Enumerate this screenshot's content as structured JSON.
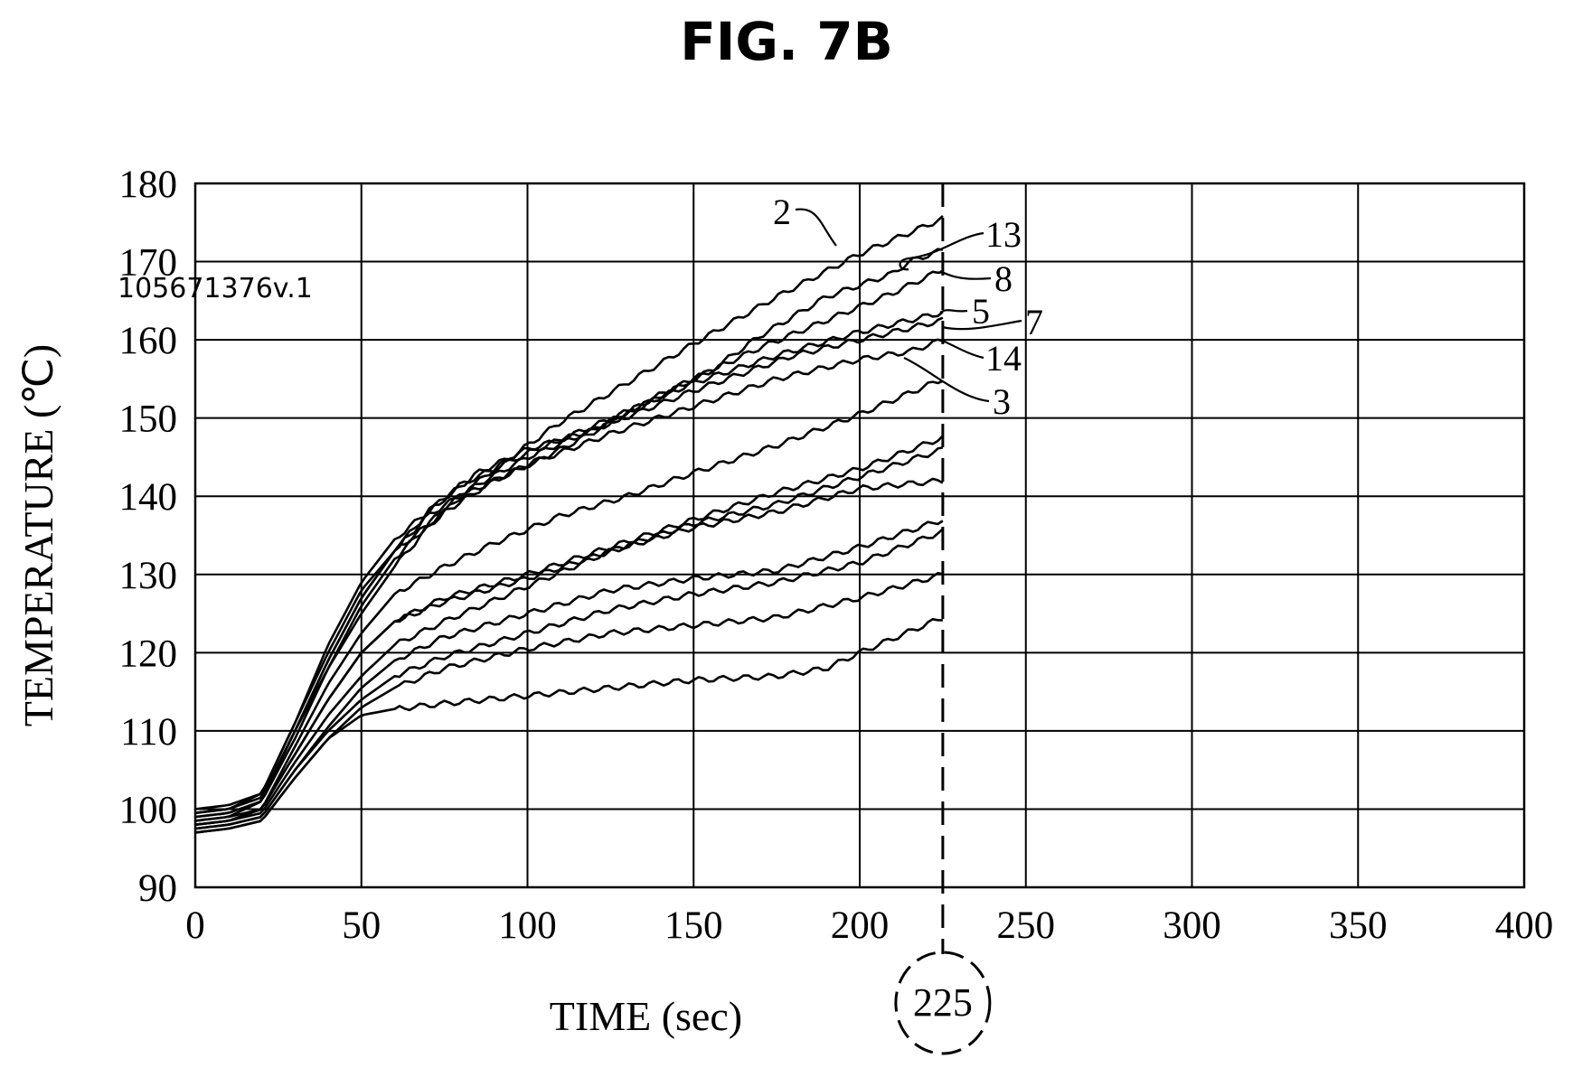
{
  "figure": {
    "title": "FIG. 7B",
    "watermark": "105671376v.1"
  },
  "chart_data": {
    "type": "line",
    "title": "FIG. 7B",
    "xlabel": "TIME (sec)",
    "ylabel": "TEMPERATURE (℃)",
    "xlim": [
      0,
      400
    ],
    "ylim": [
      90,
      180
    ],
    "xticks": [
      0,
      50,
      100,
      150,
      200,
      250,
      300,
      350,
      400
    ],
    "yticks": [
      90,
      100,
      110,
      120,
      130,
      140,
      150,
      160,
      170,
      180
    ],
    "grid": true,
    "marker_line": {
      "x": 225,
      "label": "225",
      "style": "dashed"
    },
    "curve_labels": [
      "2",
      "13",
      "8",
      "5",
      "7",
      "14",
      "3"
    ],
    "series": [
      {
        "name": "2",
        "x": [
          0,
          10,
          20,
          30,
          40,
          50,
          60,
          75,
          90,
          110,
          130,
          150,
          175,
          200,
          225
        ],
        "y": [
          98.5,
          99,
          101,
          109,
          118,
          126,
          132,
          138.5,
          143.5,
          149.5,
          154.5,
          159.5,
          165.5,
          171,
          175.5
        ]
      },
      {
        "name": "13",
        "x": [
          0,
          10,
          20,
          30,
          40,
          50,
          60,
          70,
          85,
          100,
          120,
          140,
          155,
          160,
          170,
          190,
          200,
          210,
          215,
          225
        ],
        "y": [
          99,
          99.5,
          101,
          110,
          119,
          127,
          133,
          137.5,
          141.5,
          145,
          148.5,
          153,
          156,
          157.5,
          160.5,
          165.5,
          167,
          168.5,
          170,
          171.5
        ]
      },
      {
        "name": "8",
        "x": [
          0,
          10,
          20,
          30,
          40,
          50,
          60,
          75,
          90,
          110,
          130,
          150,
          170,
          190,
          210,
          225
        ],
        "y": [
          100,
          100.5,
          102,
          111,
          120,
          128,
          133,
          138,
          142,
          146,
          150.5,
          155,
          159,
          162.5,
          166,
          169
        ]
      },
      {
        "name": "5",
        "x": [
          0,
          10,
          20,
          30,
          40,
          50,
          60,
          70,
          80,
          100,
          120,
          150,
          175,
          200,
          225
        ],
        "y": [
          99.5,
          100,
          102,
          111,
          121,
          129,
          134.5,
          138,
          141.5,
          145.5,
          149,
          154.5,
          158,
          161,
          163.5
        ]
      },
      {
        "name": "7",
        "x": [
          0,
          10,
          20,
          30,
          40,
          50,
          60,
          70,
          85,
          100,
          120,
          150,
          180,
          200,
          225
        ],
        "y": [
          99,
          99.5,
          101,
          110,
          119,
          127,
          133,
          138,
          143,
          146,
          148.5,
          153.5,
          158,
          160,
          162.5
        ]
      },
      {
        "name": "14",
        "x": [
          0,
          10,
          20,
          30,
          40,
          50,
          60,
          70,
          80,
          100,
          125,
          150,
          175,
          200,
          215,
          225
        ],
        "y": [
          99.5,
          100,
          101.5,
          110,
          118,
          125,
          131,
          136,
          140,
          144,
          148,
          151.5,
          155,
          157.5,
          158.5,
          160
        ]
      },
      {
        "name": "3",
        "x": [
          0,
          10,
          20,
          30,
          40,
          50,
          60,
          75,
          90,
          110,
          130,
          150,
          175,
          200,
          225
        ],
        "y": [
          98,
          98.5,
          100,
          108,
          116,
          122.5,
          127.5,
          131,
          134,
          137.5,
          140,
          143,
          146.5,
          150.5,
          155
        ]
      },
      {
        "name": "",
        "x": [
          0,
          10,
          20,
          30,
          40,
          50,
          60,
          75,
          100,
          125,
          150,
          175,
          200,
          225
        ],
        "y": [
          98,
          98.5,
          100,
          107,
          114,
          120,
          124,
          127,
          130,
          133.5,
          137,
          140.5,
          143.5,
          147.5
        ]
      },
      {
        "name": "",
        "x": [
          0,
          10,
          20,
          30,
          40,
          50,
          60,
          75,
          100,
          125,
          150,
          175,
          200,
          225
        ],
        "y": [
          98.5,
          99,
          100,
          107,
          114,
          120,
          124,
          126.5,
          129.5,
          133,
          136.5,
          139,
          142.5,
          146
        ]
      },
      {
        "name": "",
        "x": [
          0,
          10,
          20,
          30,
          40,
          50,
          60,
          75,
          100,
          125,
          150,
          175,
          200,
          225
        ],
        "y": [
          98,
          98.5,
          99.5,
          106,
          112,
          117,
          121,
          124,
          128.5,
          133,
          136,
          138,
          141,
          142
        ]
      },
      {
        "name": "",
        "x": [
          0,
          10,
          20,
          30,
          40,
          50,
          60,
          75,
          100,
          125,
          150,
          175,
          200,
          225
        ],
        "y": [
          97.5,
          98,
          99,
          105,
          110.5,
          115.5,
          119,
          122,
          125,
          128,
          129.5,
          130.5,
          133.5,
          137
        ]
      },
      {
        "name": "",
        "x": [
          0,
          10,
          20,
          30,
          40,
          50,
          60,
          75,
          100,
          125,
          150,
          175,
          200,
          225
        ],
        "y": [
          97.5,
          98,
          99,
          105,
          110,
          114,
          117,
          119.5,
          122.5,
          125.5,
          127.5,
          129,
          131.5,
          135.5
        ]
      },
      {
        "name": "",
        "x": [
          0,
          10,
          20,
          30,
          40,
          50,
          60,
          75,
          100,
          125,
          150,
          175,
          200,
          225
        ],
        "y": [
          97,
          97.5,
          98.5,
          104,
          109,
          113,
          115.5,
          118,
          120.5,
          122.5,
          123.5,
          124.5,
          127,
          130
        ]
      },
      {
        "name": "",
        "x": [
          0,
          10,
          20,
          30,
          40,
          50,
          60,
          75,
          100,
          125,
          150,
          175,
          190,
          200,
          225
        ],
        "y": [
          97,
          97.5,
          98.5,
          104,
          109,
          112,
          112.8,
          113.5,
          114.5,
          115.5,
          116.5,
          117,
          118,
          120,
          124.5
        ]
      }
    ]
  }
}
